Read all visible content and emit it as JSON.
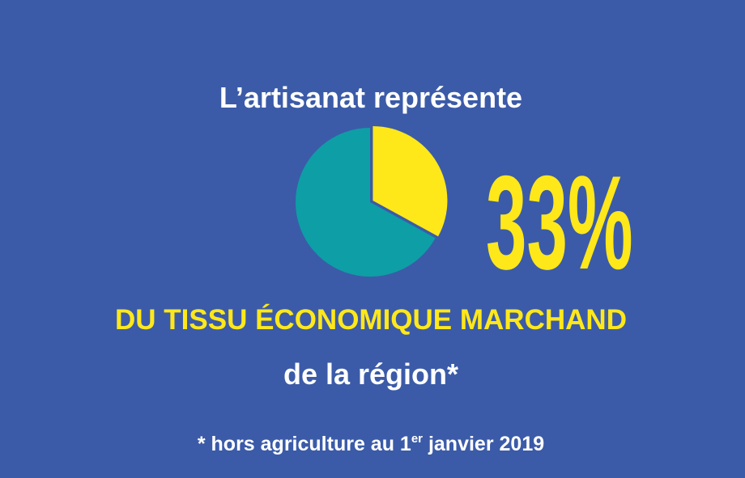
{
  "chart_data": {
    "type": "pie",
    "title": "L’artisanat représente",
    "values": [
      33,
      67
    ],
    "value_labels": [
      "33%",
      null
    ],
    "colors": [
      "#ffe81a",
      "#0e9ea6"
    ],
    "subtitle": "DU TISSU ÉCONOMIQUE MARCHAND",
    "subtitle_2": "de la région*",
    "footnote": {
      "before": "* hors agriculture au 1",
      "superscript": "er",
      "after": " janvier 2019"
    }
  }
}
